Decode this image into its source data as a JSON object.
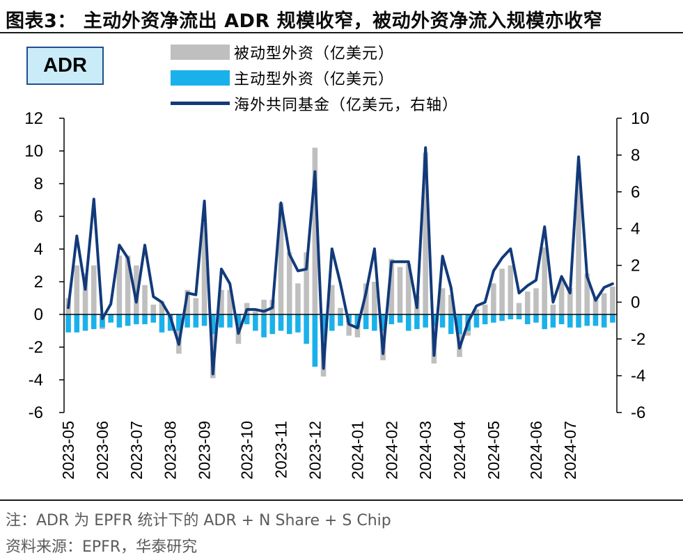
{
  "header": {
    "title": "图表3： 主动外资净流出 ADR 规模收窄，被动外资净流入规模亦收窄"
  },
  "badge": {
    "label": "ADR"
  },
  "footer": {
    "note": "注：ADR 为 EPFR 统计下的 ADR + N Share + S Chip",
    "source": "资料来源：EPFR，华泰研究"
  },
  "colors": {
    "passive": "#bfbfbf",
    "active": "#1ab1ea",
    "fund_line": "#123a7a",
    "axis": "#000000",
    "badge_bg": "#c9ecf8",
    "badge_border": "#1f4e8c"
  },
  "chart_data": {
    "type": "bar+line",
    "title": "主动外资净流出 ADR 规模收窄，被动外资净流入规模亦收窄",
    "legend": [
      {
        "name": "被动型外资（亿美元）",
        "kind": "bar"
      },
      {
        "name": "主动型外资（亿美元）",
        "kind": "bar"
      },
      {
        "name": "海外共同基金（亿美元，右轴）",
        "kind": "line"
      }
    ],
    "ylim_left": [
      -6,
      12
    ],
    "yticks_left": [
      "12",
      "10",
      "8",
      "6",
      "4",
      "2",
      "0",
      "-2",
      "-4",
      "-6"
    ],
    "ylim_right": [
      -6,
      10
    ],
    "yticks_right": [
      "10",
      "8",
      "6",
      "4",
      "2",
      "0",
      "-2",
      "-4",
      "-6"
    ],
    "x_tick_labels": [
      {
        "label": "2023-05",
        "index": 0
      },
      {
        "label": "2023-06",
        "index": 4
      },
      {
        "label": "2023-07",
        "index": 8
      },
      {
        "label": "2023-08",
        "index": 12
      },
      {
        "label": "2023-09",
        "index": 16
      },
      {
        "label": "2023-10",
        "index": 21
      },
      {
        "label": "2023-11",
        "index": 25
      },
      {
        "label": "2023-12",
        "index": 29
      },
      {
        "label": "2024-01",
        "index": 34
      },
      {
        "label": "2024-02",
        "index": 38
      },
      {
        "label": "2024-03",
        "index": 42
      },
      {
        "label": "2024-04",
        "index": 46
      },
      {
        "label": "2024-05",
        "index": 50
      },
      {
        "label": "2024-06",
        "index": 55
      },
      {
        "label": "2024-07",
        "index": 59
      }
    ],
    "series": [
      {
        "name": "被动型外资（亿美元）",
        "axis": "left",
        "type": "bar",
        "values": [
          1.0,
          3.0,
          2.5,
          3.0,
          -0.9,
          -0.2,
          3.6,
          3.6,
          3.0,
          1.8,
          0.6,
          0.8,
          -0.6,
          -2.4,
          1.5,
          1.0,
          5.6,
          -3.9,
          1.5,
          1.5,
          -1.8,
          0.7,
          0.2,
          0.9,
          0.9,
          6.8,
          3.8,
          1.9,
          3.8,
          10.2,
          -3.8,
          1.8,
          0.4,
          -1.3,
          -1.4,
          1.9,
          2.0,
          -2.8,
          3.4,
          2.9,
          3.1,
          1.1,
          9.9,
          -3.0,
          1.6,
          1.2,
          -2.6,
          -1.3,
          0.3,
          0.6,
          1.9,
          2.8,
          3.0,
          0.7,
          1.4,
          1.6,
          4.1,
          0.6,
          2.2,
          1.6,
          8.7,
          2.5,
          1.0,
          1.3,
          1.7
        ]
      },
      {
        "name": "主动型外资（亿美元）",
        "axis": "left",
        "type": "bar",
        "values": [
          -1.1,
          -1.1,
          -1.0,
          -0.9,
          -0.8,
          -0.5,
          -0.8,
          -0.7,
          -0.6,
          -0.6,
          -0.5,
          -1.1,
          -1.0,
          -1.0,
          -0.8,
          -0.8,
          -0.7,
          -1.2,
          -0.8,
          -0.8,
          -0.7,
          -0.6,
          -1.0,
          -1.4,
          -1.2,
          -1.0,
          -1.2,
          -1.1,
          -1.8,
          -3.2,
          -1.5,
          -1.0,
          -0.7,
          -0.5,
          -0.8,
          -0.9,
          -1.0,
          -1.0,
          -0.6,
          -0.5,
          -1.0,
          -0.9,
          -0.8,
          -0.7,
          -0.8,
          -1.2,
          -1.2,
          -1.0,
          -0.8,
          -0.6,
          -0.5,
          -0.4,
          -0.3,
          -0.3,
          -0.6,
          -0.5,
          -0.9,
          -0.8,
          -0.6,
          -0.8,
          -0.8,
          -0.7,
          -0.7,
          -0.8,
          -0.5
        ]
      },
      {
        "name": "海外共同基金（亿美元，右轴）",
        "axis": "right",
        "type": "line",
        "values": [
          -0.3,
          3.6,
          0.7,
          5.6,
          -0.9,
          -0.1,
          3.1,
          2.4,
          0.0,
          3.1,
          0.3,
          0.0,
          -0.8,
          -2.3,
          0.5,
          0.4,
          5.5,
          -3.9,
          1.8,
          1.0,
          -1.7,
          -0.4,
          -0.4,
          -0.5,
          -0.3,
          5.4,
          2.6,
          1.7,
          1.8,
          7.1,
          -3.6,
          2.9,
          1.0,
          -1.2,
          -1.4,
          0.5,
          2.9,
          -2.8,
          2.2,
          2.2,
          2.2,
          -0.3,
          8.4,
          -2.9,
          2.5,
          0.8,
          -2.5,
          -1.1,
          -0.2,
          0.0,
          1.7,
          2.4,
          2.9,
          0.5,
          0.9,
          1.2,
          4.1,
          0.0,
          1.4,
          0.5,
          7.9,
          1.4,
          0.1,
          0.8,
          1.0
        ]
      }
    ]
  }
}
